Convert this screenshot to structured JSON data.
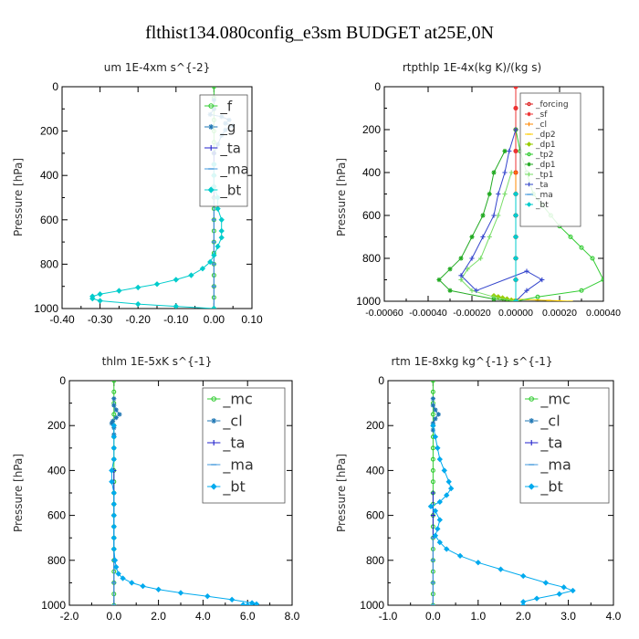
{
  "figure": {
    "title": "flthist134.080config_e3sm  BUDGET at25E,0N"
  },
  "chart_data": [
    {
      "type": "line",
      "title": "um   1E-4xm s^{-2}",
      "ylabel": "Pressure [hPa]",
      "xlabel": "",
      "xlim": [
        -0.4,
        0.1
      ],
      "ylim": [
        1000,
        0
      ],
      "x_ticks": [
        "-0.40",
        "-0.30",
        "-0.20",
        "-0.10",
        "0.00",
        "0.10"
      ],
      "y_ticks": [
        "0",
        "200",
        "400",
        "600",
        "800",
        "1000"
      ],
      "legend_position": "top-right",
      "series": [
        {
          "name": "_f",
          "color": "#33cc33",
          "marker": "circle",
          "x": [
            0.0,
            0.0,
            0.0,
            0.0,
            0.0,
            0.0,
            0.0,
            0.0,
            0.0,
            0.0,
            0.0,
            0.0,
            0.0,
            0.0,
            0.0,
            0.0,
            0.0,
            0.0,
            0.0,
            0.0,
            0.0
          ],
          "y": [
            0,
            50,
            100,
            150,
            200,
            250,
            300,
            350,
            400,
            450,
            500,
            550,
            600,
            650,
            700,
            750,
            800,
            850,
            900,
            950,
            1000
          ]
        },
        {
          "name": "_g",
          "color": "#1f77b4",
          "marker": "star",
          "x": [
            0.0,
            0.0,
            -0.01,
            0.02,
            0.04,
            0.03,
            0.05,
            0.03,
            0.02,
            0.01,
            0.0,
            0.0
          ],
          "y": [
            60,
            100,
            125,
            135,
            150,
            165,
            175,
            195,
            220,
            260,
            300,
            350
          ]
        },
        {
          "name": "_ta",
          "color": "#2222cc",
          "marker": "plus",
          "x": [
            0.0,
            0.0,
            0.0,
            0.0,
            0.0,
            0.0,
            0.0,
            0.0
          ],
          "y": [
            300,
            400,
            500,
            600,
            700,
            800,
            900,
            1000
          ]
        },
        {
          "name": "_ma",
          "color": "#4499dd",
          "marker": "dash",
          "x": [
            0.0,
            0.0,
            0.0,
            0.0,
            0.0,
            0.0
          ],
          "y": [
            500,
            600,
            700,
            800,
            900,
            1000
          ]
        },
        {
          "name": "_bt",
          "color": "#00cccc",
          "marker": "diamond",
          "x": [
            0.0,
            0.0,
            0.0,
            0.01,
            0.01,
            0.02,
            0.02,
            0.02,
            0.01,
            0.0,
            -0.01,
            -0.03,
            -0.06,
            -0.1,
            -0.15,
            -0.2,
            -0.25,
            -0.3,
            -0.32,
            -0.32,
            -0.3,
            -0.2,
            -0.1,
            0.0
          ],
          "y": [
            350,
            400,
            450,
            500,
            550,
            600,
            650,
            680,
            720,
            760,
            790,
            820,
            850,
            870,
            890,
            905,
            920,
            935,
            945,
            955,
            965,
            980,
            990,
            1000
          ]
        }
      ]
    },
    {
      "type": "line",
      "title": "rtpthlp   1E-4x(kg K)/(kg s)",
      "ylabel": "Pressure [hPa]",
      "xlabel": "",
      "xlim": [
        -0.0006,
        0.0004
      ],
      "ylim": [
        1000,
        0
      ],
      "x_ticks": [
        "-0.00060",
        "-0.00040",
        "-0.00020",
        "0.00000",
        "0.00020",
        "0.00040"
      ],
      "y_ticks": [
        "0",
        "200",
        "400",
        "600",
        "800",
        "1000"
      ],
      "legend_position": "top-right",
      "series": [
        {
          "name": "_forcing",
          "color": "#dd2222",
          "marker": "circle",
          "x": [
            0.0,
            0.0,
            0.0,
            0.0,
            0.0,
            0.0,
            0.0,
            0.0,
            0.0,
            0.0,
            0.0
          ],
          "y": [
            0,
            100,
            200,
            300,
            400,
            500,
            600,
            700,
            800,
            900,
            1000
          ]
        },
        {
          "name": "_sf",
          "color": "#ee3333",
          "marker": "star",
          "x": [
            0.0,
            0.0,
            0.0,
            0.0,
            0.0,
            0.0,
            0.0,
            0.0,
            0.0,
            0.0,
            0.0
          ],
          "y": [
            0,
            100,
            200,
            300,
            400,
            500,
            600,
            700,
            800,
            900,
            1000
          ]
        },
        {
          "name": "_cl",
          "color": "#ff8800",
          "marker": "plus",
          "x": [
            0.0,
            0.0,
            0.0,
            0.0,
            0.0,
            0.0,
            0.0
          ],
          "y": [
            400,
            500,
            600,
            700,
            800,
            900,
            1000
          ]
        },
        {
          "name": "_dp2",
          "color": "#ffcc00",
          "marker": "dash",
          "x": [
            0.0,
            5e-05,
            0.0001,
            0.00015,
            0.0002,
            0.00025
          ],
          "y": [
            990,
            992,
            994,
            996,
            998,
            1000
          ]
        },
        {
          "name": "_dp1",
          "color": "#99cc00",
          "marker": "diamond",
          "x": [
            0.0,
            -2e-05,
            -4e-05,
            -6e-05,
            -8e-05,
            -0.0001
          ],
          "y": [
            1000,
            995,
            990,
            985,
            980,
            975
          ]
        },
        {
          "name": "_tp2",
          "color": "#33cc33",
          "marker": "circle",
          "x": [
            0.0,
            2e-05,
            5e-05,
            8e-05,
            0.00012,
            0.00016,
            0.0002,
            0.00025,
            0.0003,
            0.00035,
            0.0004,
            0.0003,
            0.0001,
            0.0
          ],
          "y": [
            200,
            300,
            400,
            500,
            550,
            600,
            650,
            700,
            750,
            800,
            900,
            950,
            980,
            1000
          ]
        },
        {
          "name": "_dp1",
          "color": "#22aa22",
          "marker": "star",
          "x": [
            -5e-05,
            -0.0001,
            -0.00012,
            -0.00015,
            -0.0002,
            -0.00025,
            -0.0003,
            -0.00035,
            -0.0003,
            -0.0001,
            0.0
          ],
          "y": [
            300,
            400,
            500,
            600,
            700,
            800,
            850,
            900,
            950,
            990,
            1000
          ]
        },
        {
          "name": "_tp1",
          "color": "#77dd66",
          "marker": "plus",
          "x": [
            -2e-05,
            -5e-05,
            -8e-05,
            -0.00012,
            -0.00016,
            -0.00022,
            -0.00025,
            -0.0002,
            -0.0001,
            0.0
          ],
          "y": [
            400,
            500,
            600,
            700,
            800,
            850,
            900,
            950,
            980,
            1000
          ]
        },
        {
          "name": "_ta",
          "color": "#3344cc",
          "marker": "plus",
          "x": [
            0.0,
            -3e-05,
            -5e-05,
            -8e-05,
            -0.0001,
            -0.00015,
            -0.0002,
            -0.00025,
            -0.00018,
            5e-05,
            0.00012,
            5e-05,
            0.0
          ],
          "y": [
            200,
            300,
            400,
            500,
            600,
            700,
            800,
            880,
            950,
            860,
            900,
            950,
            1000
          ]
        },
        {
          "name": "_ma",
          "color": "#4499dd",
          "marker": "dash",
          "x": [
            0.0,
            0.0,
            0.0,
            0.0,
            0.0
          ],
          "y": [
            600,
            700,
            800,
            900,
            1000
          ]
        },
        {
          "name": "_bt",
          "color": "#00cccc",
          "marker": "diamond",
          "x": [
            0.0,
            0.0,
            0.0,
            0.0,
            0.0,
            0.0
          ],
          "y": [
            500,
            600,
            700,
            800,
            900,
            1000
          ]
        }
      ]
    },
    {
      "type": "line",
      "title": "thlm   1E-5xK  s^{-1}",
      "ylabel": "Pressure [hPa]",
      "xlabel": "",
      "xlim": [
        -2.0,
        8.0
      ],
      "ylim": [
        1000,
        0
      ],
      "x_ticks": [
        "-2.0",
        "0.0",
        "2.0",
        "4.0",
        "6.0",
        "8.0"
      ],
      "y_ticks": [
        "0",
        "200",
        "400",
        "600",
        "800",
        "1000"
      ],
      "legend_position": "top-right",
      "series": [
        {
          "name": "_mc",
          "color": "#33cc33",
          "marker": "circle",
          "x": [
            0.0,
            0.0,
            0.0,
            0.0,
            0.0,
            0.0,
            0.0,
            0.0,
            0.0,
            0.0,
            0.0,
            0.0,
            0.0,
            0.0,
            0.0,
            0.0,
            0.0,
            0.0,
            0.0,
            0.0,
            0.0
          ],
          "y": [
            0,
            50,
            100,
            150,
            200,
            250,
            300,
            350,
            400,
            450,
            500,
            550,
            600,
            650,
            700,
            750,
            800,
            850,
            900,
            950,
            1000
          ]
        },
        {
          "name": "_cl",
          "color": "#1f77b4",
          "marker": "star",
          "x": [
            0.0,
            0.0,
            0.1,
            0.25,
            0.1,
            -0.05,
            -0.1,
            0.0,
            0.0
          ],
          "y": [
            80,
            110,
            130,
            150,
            165,
            180,
            190,
            210,
            240
          ]
        },
        {
          "name": "_ta",
          "color": "#2222cc",
          "marker": "plus",
          "x": [
            0.0,
            0.0,
            0.0,
            0.0,
            0.0,
            0.0,
            0.0
          ],
          "y": [
            400,
            500,
            600,
            700,
            800,
            900,
            1000
          ]
        },
        {
          "name": "_ma",
          "color": "#4499dd",
          "marker": "dash",
          "x": [
            0.0,
            0.0,
            0.0,
            0.0,
            0.0
          ],
          "y": [
            600,
            700,
            800,
            900,
            1000
          ]
        },
        {
          "name": "_bt",
          "color": "#00aaee",
          "marker": "diamond",
          "x": [
            0.0,
            0.0,
            0.0,
            0.0,
            -0.1,
            -0.1,
            0.0,
            0.0,
            0.0,
            0.0,
            0.0,
            0.0,
            0.05,
            0.1,
            0.2,
            0.4,
            0.8,
            1.3,
            2.0,
            3.0,
            4.2,
            5.3,
            6.2,
            6.4,
            6.0,
            5.8
          ],
          "y": [
            200,
            250,
            300,
            350,
            400,
            450,
            500,
            550,
            600,
            650,
            700,
            750,
            800,
            830,
            860,
            880,
            900,
            915,
            930,
            945,
            960,
            975,
            990,
            995,
            1000,
            998
          ]
        }
      ]
    },
    {
      "type": "line",
      "title": "rtm   1E-8xkg  kg^{-1} s^{-1}",
      "ylabel": "Pressure [hPa]",
      "xlabel": "",
      "xlim": [
        -1.0,
        4.0
      ],
      "ylim": [
        1000,
        0
      ],
      "x_ticks": [
        "-1.0",
        "0.0",
        "1.0",
        "2.0",
        "3.0",
        "4.0"
      ],
      "y_ticks": [
        "0",
        "200",
        "400",
        "600",
        "800",
        "1000"
      ],
      "legend_position": "top-right",
      "series": [
        {
          "name": "_mc",
          "color": "#33cc33",
          "marker": "circle",
          "x": [
            0.0,
            0.0,
            0.0,
            0.0,
            0.0,
            0.0,
            0.0,
            0.0,
            0.0,
            0.0,
            0.0,
            0.0,
            0.0,
            0.0,
            0.0,
            0.0,
            0.0,
            0.0,
            0.0,
            0.0,
            0.0
          ],
          "y": [
            0,
            50,
            100,
            150,
            200,
            250,
            300,
            350,
            400,
            450,
            500,
            550,
            600,
            650,
            700,
            750,
            800,
            850,
            900,
            950,
            1000
          ]
        },
        {
          "name": "_cl",
          "color": "#1f77b4",
          "marker": "star",
          "x": [
            0.0,
            0.0,
            0.05,
            0.12,
            0.05,
            0.0,
            0.0
          ],
          "y": [
            80,
            110,
            130,
            150,
            170,
            190,
            220
          ]
        },
        {
          "name": "_ta",
          "color": "#2222cc",
          "marker": "plus",
          "x": [
            0.0,
            0.0,
            0.0,
            0.0,
            0.0,
            0.0
          ],
          "y": [
            500,
            600,
            700,
            800,
            900,
            1000
          ]
        },
        {
          "name": "_ma",
          "color": "#4499dd",
          "marker": "dash",
          "x": [
            0.0,
            0.0,
            0.0,
            0.0
          ],
          "y": [
            700,
            800,
            900,
            1000
          ]
        },
        {
          "name": "_bt",
          "color": "#00aaee",
          "marker": "diamond",
          "x": [
            0.0,
            0.05,
            0.1,
            0.15,
            0.25,
            0.35,
            0.4,
            0.3,
            0.15,
            -0.05,
            0.05,
            0.15,
            0.1,
            0.05,
            0.15,
            0.3,
            0.6,
            1.0,
            1.5,
            2.0,
            2.5,
            2.9,
            3.1,
            2.8,
            2.3,
            2.0,
            2.0
          ],
          "y": [
            200,
            250,
            300,
            350,
            400,
            450,
            480,
            510,
            540,
            560,
            580,
            620,
            660,
            690,
            720,
            750,
            780,
            810,
            840,
            870,
            900,
            920,
            935,
            950,
            970,
            985,
            1000
          ]
        }
      ]
    }
  ]
}
